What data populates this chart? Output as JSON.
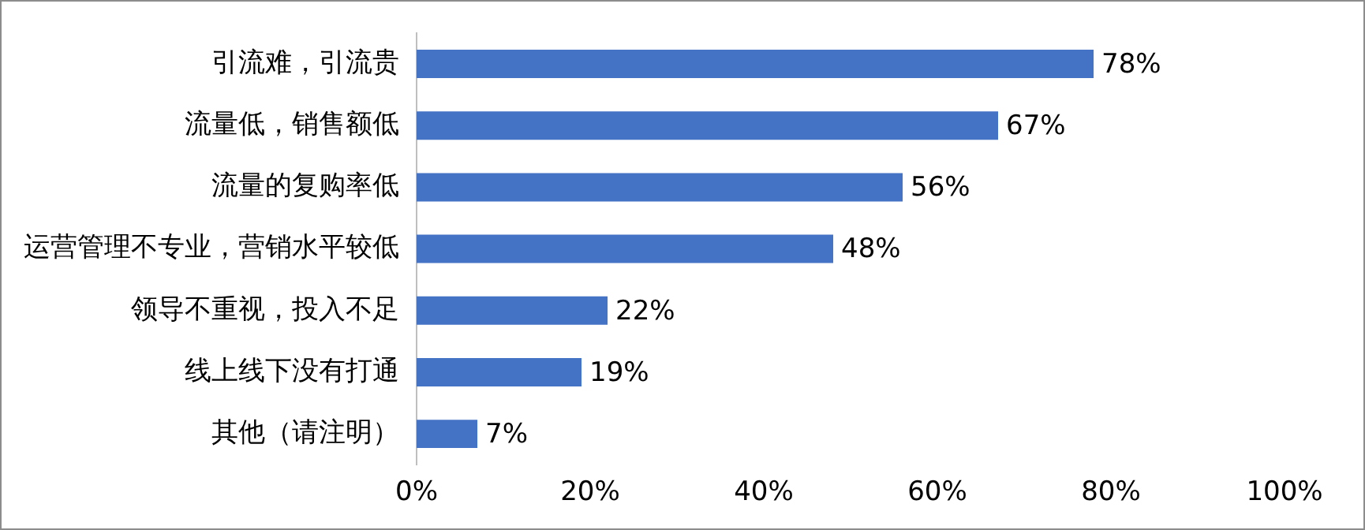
{
  "chart_data": {
    "type": "bar",
    "orientation": "horizontal",
    "categories": [
      "引流难，引流贵",
      "流量低，销售额低",
      "流量的复购率低",
      "运营管理不专业，营销水平较低",
      "领导不重视，投入不足",
      "线上线下没有打通",
      "其他（请注明）"
    ],
    "values": [
      78,
      67,
      56,
      48,
      22,
      19,
      7
    ],
    "value_labels": [
      "78%",
      "67%",
      "56%",
      "48%",
      "22%",
      "19%",
      "7%"
    ],
    "color": "#4472c4",
    "xlim": [
      0,
      100
    ],
    "xticks": [
      {
        "value": 0,
        "label": "0%"
      },
      {
        "value": 20,
        "label": "20%"
      },
      {
        "value": 40,
        "label": "40%"
      },
      {
        "value": 60,
        "label": "60%"
      },
      {
        "value": 80,
        "label": "80%"
      },
      {
        "value": 100,
        "label": "100%"
      }
    ],
    "grid": false,
    "legend": false
  }
}
